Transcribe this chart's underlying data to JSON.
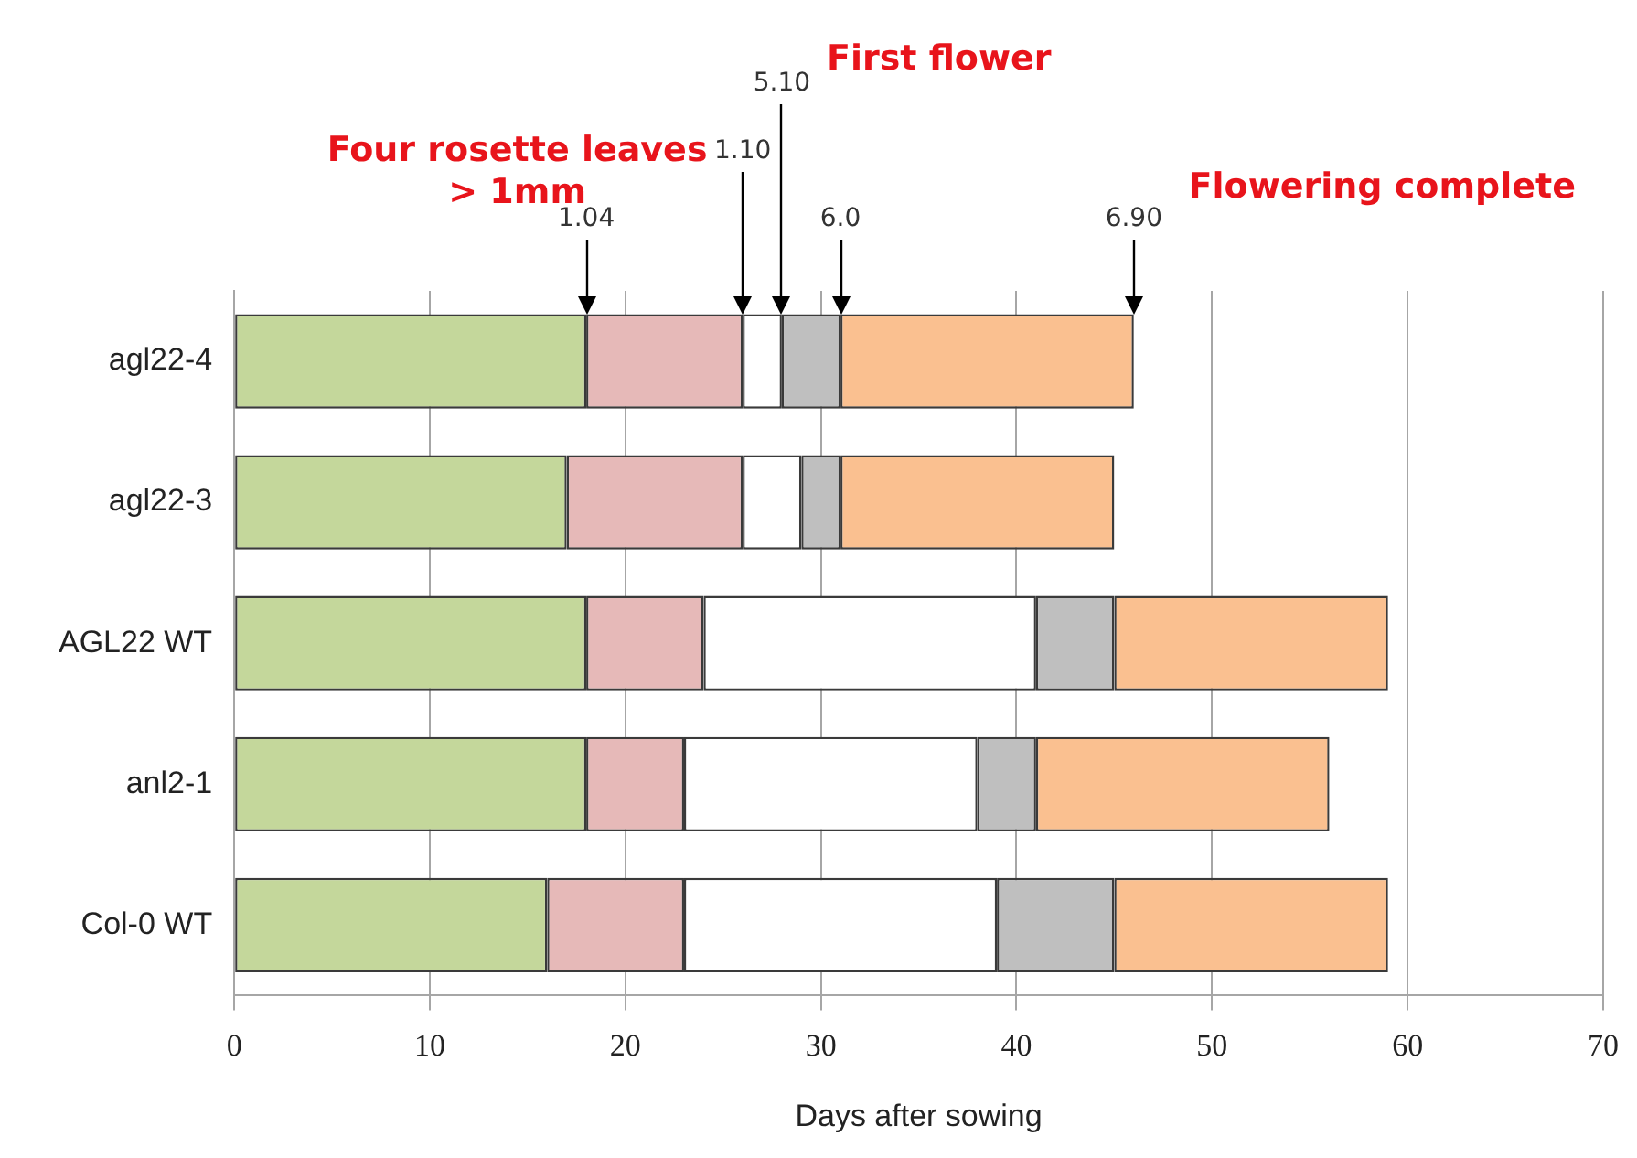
{
  "chart_data": {
    "type": "bar",
    "orientation": "horizontal",
    "stacked": true,
    "categories": [
      "agl22-4",
      "agl22-3",
      "AGL22 WT",
      "anl2-1",
      "Col-0 WT"
    ],
    "series": [
      {
        "color": "#c4d79b",
        "values": [
          18,
          17,
          18,
          18,
          16
        ]
      },
      {
        "color": "#e6b9b8",
        "values": [
          8,
          9,
          6,
          5,
          7
        ]
      },
      {
        "color": "#ffffff",
        "values": [
          2,
          3,
          17,
          15,
          16
        ]
      },
      {
        "color": "#bfbfbf",
        "values": [
          3,
          2,
          4,
          3,
          6
        ]
      },
      {
        "color": "#fac090",
        "values": [
          15,
          14,
          14,
          15,
          14
        ]
      }
    ],
    "xlim": [
      0,
      70
    ],
    "xticks": [
      0,
      10,
      20,
      30,
      40,
      50,
      60,
      70
    ],
    "xlabel": "Days after sowing",
    "grid": "x",
    "annotations": [
      {
        "text": "1.04",
        "x": 18
      },
      {
        "text": "1.10",
        "x": 26
      },
      {
        "text": "5.10",
        "x": 28
      },
      {
        "text": "6.0",
        "x": 31
      },
      {
        "text": "6.90",
        "x": 46
      },
      "Four rosette leaves > 1mm",
      "First flower",
      "Flowering complete"
    ]
  }
}
